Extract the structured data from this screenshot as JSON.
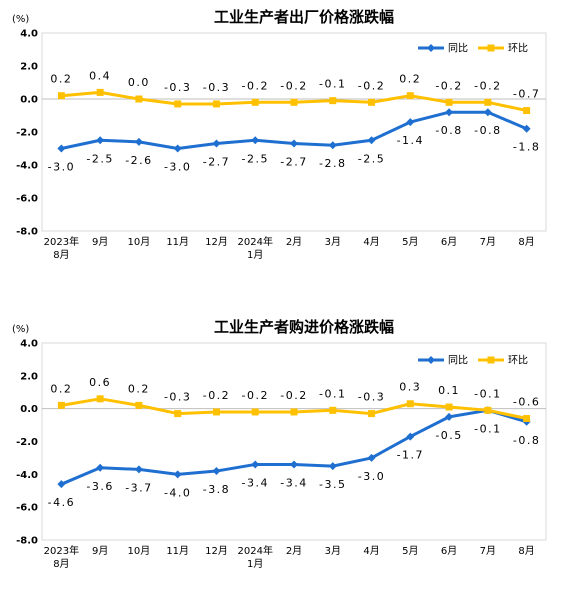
{
  "chart_data": [
    {
      "type": "line",
      "title": "工业生产者出厂价格涨跌幅",
      "ylabel": "(%)",
      "xlabel": "",
      "ylim": [
        -8.0,
        4.0
      ],
      "yticks": [
        "4.0",
        "2.0",
        "0.0",
        "-2.0",
        "-4.0",
        "-6.0",
        "-8.0"
      ],
      "ytick_values": [
        4,
        2,
        0,
        -2,
        -4,
        -6,
        -8
      ],
      "categories": [
        "2023年\n8月",
        "9月",
        "10月",
        "11月",
        "12月",
        "2024年\n1月",
        "2月",
        "3月",
        "4月",
        "5月",
        "6月",
        "7月",
        "8月"
      ],
      "legend_position": "top-right",
      "series": [
        {
          "name": "同比",
          "color": "#1f6fd1",
          "marker": "diamond",
          "label_position": "below",
          "values": [
            -3.0,
            -2.5,
            -2.6,
            -3.0,
            -2.7,
            -2.5,
            -2.7,
            -2.8,
            -2.5,
            -1.4,
            -0.8,
            -0.8,
            -1.8
          ],
          "labels": [
            "-3.0",
            "-2.5",
            "-2.6",
            "-3.0",
            "-2.7",
            "-2.5",
            "-2.7",
            "-2.8",
            "-2.5",
            "-1.4",
            "-0.8",
            "-0.8",
            "-1.8"
          ]
        },
        {
          "name": "环比",
          "color": "#ffc000",
          "marker": "square",
          "label_position": "above",
          "values": [
            0.2,
            0.4,
            0.0,
            -0.3,
            -0.3,
            -0.2,
            -0.2,
            -0.1,
            -0.2,
            0.2,
            -0.2,
            -0.2,
            -0.7
          ],
          "labels": [
            "0.2",
            "0.4",
            "0.0",
            "-0.3",
            "-0.3",
            "-0.2",
            "-0.2",
            "-0.1",
            "-0.2",
            "0.2",
            "-0.2",
            "-0.2",
            "-0.7"
          ]
        }
      ]
    },
    {
      "type": "line",
      "title": "工业生产者购进价格涨跌幅",
      "ylabel": "(%)",
      "xlabel": "",
      "ylim": [
        -8.0,
        4.0
      ],
      "yticks": [
        "4.0",
        "2.0",
        "0.0",
        "-2.0",
        "-4.0",
        "-6.0",
        "-8.0"
      ],
      "ytick_values": [
        4,
        2,
        0,
        -2,
        -4,
        -6,
        -8
      ],
      "categories": [
        "2023年\n8月",
        "9月",
        "10月",
        "11月",
        "12月",
        "2024年\n1月",
        "2月",
        "3月",
        "4月",
        "5月",
        "6月",
        "7月",
        "8月"
      ],
      "legend_position": "top-right",
      "series": [
        {
          "name": "同比",
          "color": "#1f6fd1",
          "marker": "diamond",
          "label_position": "below",
          "values": [
            -4.6,
            -3.6,
            -3.7,
            -4.0,
            -3.8,
            -3.4,
            -3.4,
            -3.5,
            -3.0,
            -1.7,
            -0.5,
            -0.1,
            -0.8
          ],
          "labels": [
            "-4.6",
            "-3.6",
            "-3.7",
            "-4.0",
            "-3.8",
            "-3.4",
            "-3.4",
            "-3.5",
            "-3.0",
            "-1.7",
            "-0.5",
            "-0.1",
            "-0.8"
          ]
        },
        {
          "name": "环比",
          "color": "#ffc000",
          "marker": "square",
          "label_position": "above",
          "values": [
            0.2,
            0.6,
            0.2,
            -0.3,
            -0.2,
            -0.2,
            -0.2,
            -0.1,
            -0.3,
            0.3,
            0.1,
            -0.1,
            -0.6
          ],
          "labels": [
            "0.2",
            "0.6",
            "0.2",
            "-0.3",
            "-0.2",
            "-0.2",
            "-0.2",
            "-0.1",
            "-0.3",
            "0.3",
            "0.1",
            "-0.1",
            "-0.6"
          ]
        }
      ]
    }
  ]
}
